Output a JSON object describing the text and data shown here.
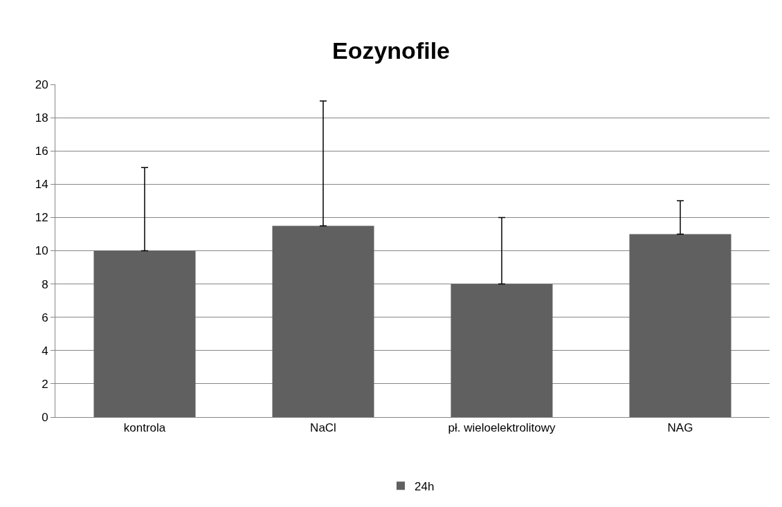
{
  "chart_data": {
    "type": "bar",
    "title": "Eozynofile",
    "categories": [
      "kontrola",
      "NaCl",
      "pł. wieloelektrolitowy",
      "NAG"
    ],
    "series": [
      {
        "name": "24h",
        "color": "#606060",
        "values": [
          10,
          11.5,
          8,
          11
        ],
        "errors": [
          [
            10,
            15
          ],
          [
            11.5,
            19
          ],
          [
            8,
            12
          ],
          [
            11,
            13
          ]
        ]
      }
    ],
    "ylim": [
      0,
      20
    ],
    "yticks": [
      0,
      2,
      4,
      6,
      8,
      10,
      12,
      14,
      16,
      18,
      20
    ],
    "grid": "y",
    "legend": "bottom"
  }
}
